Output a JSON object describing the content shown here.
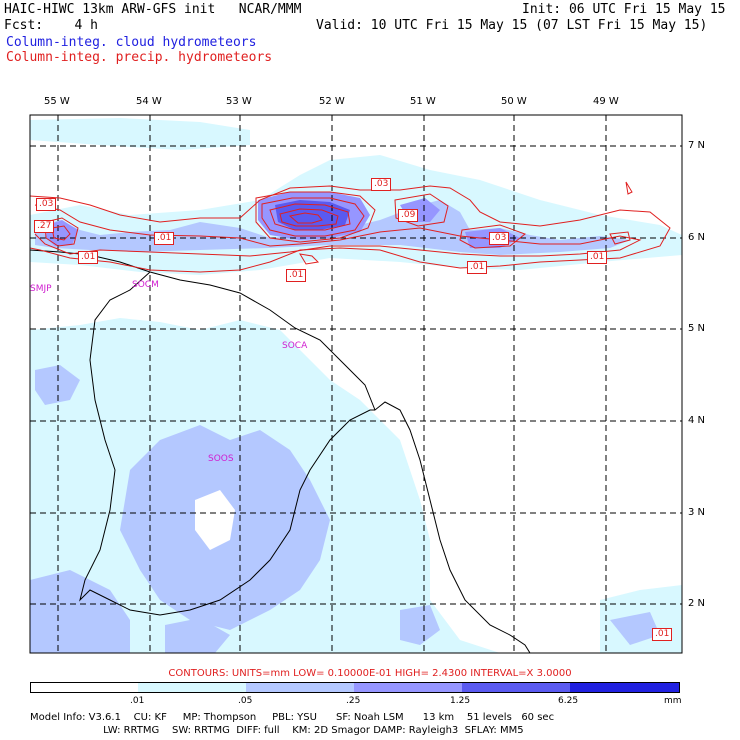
{
  "header": {
    "title": "HAIC-HIWC 13km ARW-GFS init   NCAR/MMM",
    "fcst": "Fcst:    4 h",
    "init": "Init: 06 UTC Fri 15 May 15",
    "valid": "Valid: 10 UTC Fri 15 May 15 (07 LST Fri 15 May 15)",
    "field_blue": "Column-integ. cloud hydrometeors",
    "field_red": "Column-integ. precip. hydrometeors"
  },
  "map": {
    "lon_labels": [
      "55 W",
      "54 W",
      "53 W",
      "52 W",
      "51 W",
      "50 W",
      "49 W"
    ],
    "lat_labels": [
      "7 N",
      "6 N",
      "5 N",
      "4 N",
      "3 N",
      "2 N"
    ],
    "stations": [
      "SMJP",
      "SOCM",
      "SOCA",
      "SOOS"
    ],
    "contour_labels": [
      ".03",
      ".27",
      ".01",
      ".03",
      ".09",
      ".01",
      ".03",
      ".01",
      ".01",
      ".01"
    ]
  },
  "legend": {
    "contours_text": "CONTOURS:  UNITS=mm  LOW= 0.10000E-01  HIGH=  2.4300      INTERVAL=X  3.0000",
    "colorbar_ticks": [
      ".01",
      ".05",
      ".25",
      "1.25",
      "6.25"
    ],
    "units": "mm",
    "colors": [
      "#ffffff",
      "#d8f8ff",
      "#b4c8ff",
      "#9696ff",
      "#5a5af0",
      "#2020e0",
      "#0000c8"
    ]
  },
  "model_info": {
    "line1": "Model Info: V3.6.1    CU: KF     MP: Thompson     PBL: YSU      SF: Noah LSM      13 km    51 levels   60 sec",
    "line2": "                       LW: RRTMG    SW: RRTMG  DIFF: full    KM: 2D Smagor DAMP: Rayleigh3  SFLAY: MM5"
  }
}
